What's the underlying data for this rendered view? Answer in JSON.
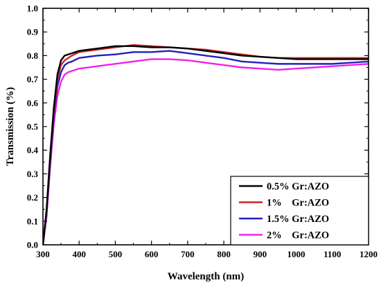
{
  "chart_data": {
    "type": "line",
    "title": "",
    "xlabel": "Wavelength (nm)",
    "ylabel": "Transmission (%)",
    "xlim": [
      300,
      1200
    ],
    "ylim": [
      0.0,
      1.0
    ],
    "x_ticks": [
      "300",
      "400",
      "500",
      "600",
      "700",
      "800",
      "900",
      "1000",
      "1100",
      "1200"
    ],
    "y_ticks": [
      "0.0",
      "0.1",
      "0.2",
      "0.3",
      "0.4",
      "0.5",
      "0.6",
      "0.7",
      "0.8",
      "0.9",
      "1.0"
    ],
    "grid": false,
    "legend_position": "bottom-right",
    "x": [
      300,
      310,
      320,
      330,
      340,
      350,
      360,
      370,
      380,
      400,
      450,
      500,
      550,
      600,
      650,
      700,
      750,
      800,
      850,
      900,
      950,
      1000,
      1050,
      1100,
      1150,
      1200
    ],
    "series": [
      {
        "name": "0.5% Gr:AZO",
        "color": "#000000",
        "values": [
          0.0,
          0.15,
          0.38,
          0.58,
          0.72,
          0.78,
          0.8,
          0.805,
          0.81,
          0.82,
          0.83,
          0.84,
          0.84,
          0.835,
          0.835,
          0.83,
          0.82,
          0.81,
          0.8,
          0.795,
          0.79,
          0.785,
          0.785,
          0.785,
          0.785,
          0.785
        ]
      },
      {
        "name": "1%    Gr:AZO",
        "color": "#cc2222",
        "values": [
          0.0,
          0.14,
          0.37,
          0.56,
          0.7,
          0.76,
          0.78,
          0.79,
          0.8,
          0.815,
          0.825,
          0.835,
          0.845,
          0.84,
          0.835,
          0.83,
          0.825,
          0.815,
          0.805,
          0.795,
          0.79,
          0.79,
          0.79,
          0.79,
          0.79,
          0.79
        ]
      },
      {
        "name": "1.5% Gr:AZO",
        "color": "#1f22b8",
        "values": [
          0.0,
          0.13,
          0.35,
          0.54,
          0.67,
          0.73,
          0.76,
          0.77,
          0.775,
          0.79,
          0.8,
          0.805,
          0.815,
          0.815,
          0.82,
          0.81,
          0.8,
          0.79,
          0.775,
          0.77,
          0.765,
          0.765,
          0.765,
          0.765,
          0.77,
          0.775
        ]
      },
      {
        "name": "2%    Gr:AZO",
        "color": "#ee22ee",
        "values": [
          0.0,
          0.12,
          0.33,
          0.51,
          0.63,
          0.69,
          0.72,
          0.73,
          0.735,
          0.745,
          0.755,
          0.765,
          0.775,
          0.785,
          0.785,
          0.78,
          0.77,
          0.76,
          0.75,
          0.745,
          0.74,
          0.745,
          0.75,
          0.755,
          0.76,
          0.765
        ]
      }
    ]
  }
}
